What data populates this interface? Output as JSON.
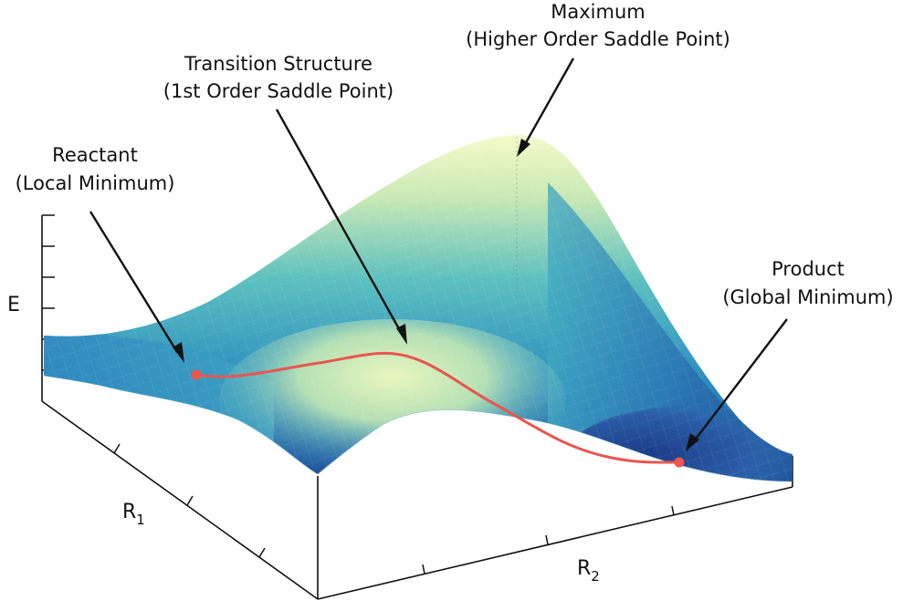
{
  "colors": {
    "surface_low": "#1f3f8f",
    "surface_mid": "#2fa3c2",
    "surface_high": "#f5fbc8",
    "reaction_path": "#e8564f",
    "points": "#f0554b",
    "axis": "#111111"
  },
  "axes": {
    "energy": "E",
    "r1_letter": "R",
    "r1_sub": "1",
    "r2_letter": "R",
    "r2_sub": "2"
  },
  "annotations": {
    "maximum": {
      "line1": "Maximum",
      "line2": "(Higher Order Saddle Point)"
    },
    "transition": {
      "line1": "Transition Structure",
      "line2": "(1st Order Saddle Point)"
    },
    "reactant": {
      "line1": "Reactant",
      "line2": "(Local Minimum)"
    },
    "product": {
      "line1": "Product",
      "line2": "(Global Minimum)"
    }
  }
}
